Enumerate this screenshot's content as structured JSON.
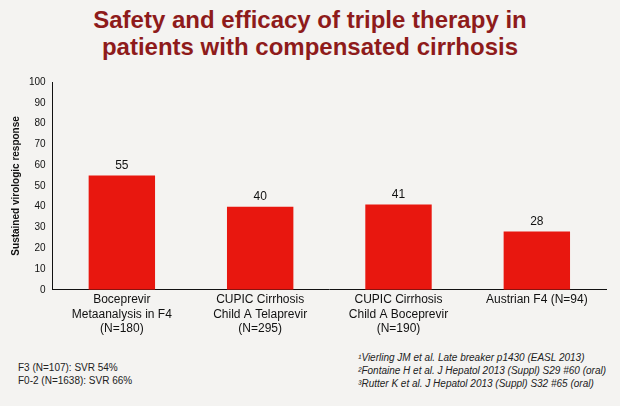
{
  "chart_data": {
    "type": "bar",
    "title": "Safety and efficacy of triple therapy in patients with compensated cirrhosis",
    "y_label": "Sustained virologic response",
    "categories": [
      "Boceprevir Metaanalysis in F4 (N=180)",
      "CUPIC Cirrhosis Child A Telaprevir (N=295)",
      "CUPIC Cirrhosis Child A Boceprevir (N=190)",
      "Austrian F4 (N=94)"
    ],
    "values": [
      55,
      40,
      41,
      28
    ],
    "color": "#e8170f",
    "ylim": [
      0,
      100
    ],
    "yticks": [
      0,
      10,
      20,
      30,
      40,
      50,
      60,
      70,
      80,
      90,
      100
    ],
    "grid": false,
    "data_labels": true,
    "footnotes": [
      "F3 (N=107): SVR 54%",
      "F0-2 (N=1638): SVR 66%"
    ],
    "references": [
      "¹Vierling JM et al. Late breaker p1430 (EASL 2013)",
      "²Fontaine H et al. J Hepatol 2013 (Suppl) S29 #60 (oral)",
      "³Rutter K et al. J Hepatol 2013 (Suppl) S32 #65 (oral)"
    ]
  }
}
